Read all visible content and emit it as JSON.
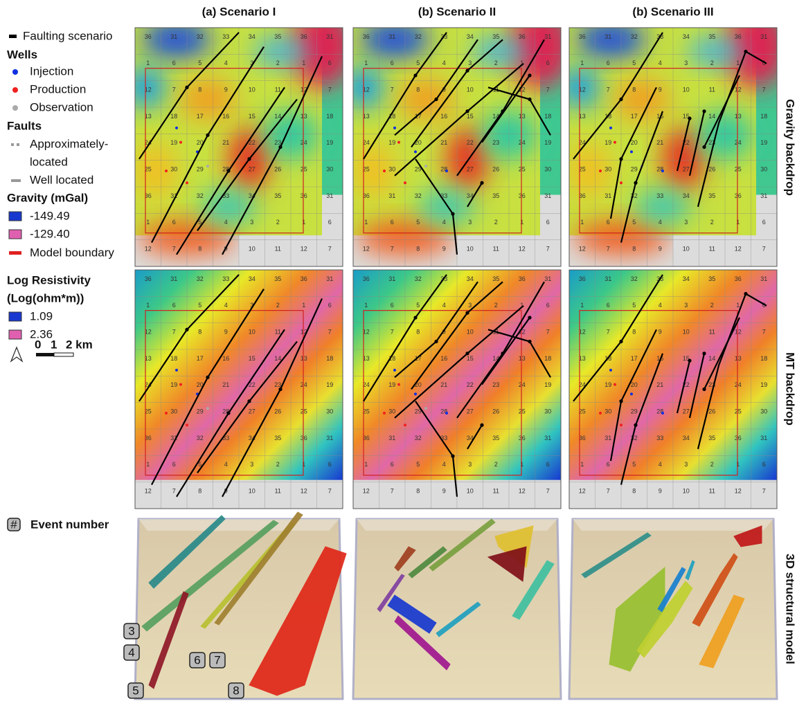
{
  "column_titles": [
    "(a) Scenario I",
    "(b) Scenario II",
    "(b) Scenario III"
  ],
  "row_labels": [
    "Gravity backdrop",
    "MT backdrop",
    "3D structural model"
  ],
  "legend": {
    "faulting_scenario": "Faulting scenario",
    "wells": {
      "title": "Wells",
      "items": [
        "Injection",
        "Production",
        "Observation"
      ]
    },
    "faults": {
      "title": "Faults",
      "items": [
        [
          "Approximately-",
          "located"
        ],
        [
          "Well located"
        ]
      ]
    },
    "gravity": {
      "title": "Gravity (mGal)",
      "min": "-149.49",
      "max": "-129.40"
    },
    "model_boundary": "Model boundary",
    "resistivity": {
      "title": [
        "Log Resistivity",
        "(Log(ohm*m))"
      ],
      "min": "1.09",
      "max": "2.36"
    },
    "scale_bar": [
      "0",
      "1",
      "2 km"
    ],
    "event_number": {
      "symbol": "#",
      "label": "Event number"
    }
  },
  "events": [
    "3",
    "4",
    "5",
    "6",
    "7",
    "8"
  ],
  "map_sections": [
    [
      "36",
      "31",
      "32",
      "33",
      "34",
      "35",
      "36",
      "31"
    ],
    [
      "1",
      "6",
      "5",
      "4",
      "3",
      "2",
      "1",
      "6"
    ],
    [
      "12",
      "7",
      "8",
      "9",
      "10",
      "11",
      "12",
      "7"
    ],
    [
      "13",
      "18",
      "17",
      "16",
      "15",
      "14",
      "13",
      "18"
    ],
    [
      "24",
      "19",
      "20",
      "21",
      "22",
      "23",
      "24",
      "19"
    ],
    [
      "25",
      "30",
      "29",
      "28",
      "27",
      "26",
      "25",
      "30"
    ],
    [
      "36",
      "31",
      "32",
      "33",
      "34",
      "35",
      "36",
      "31"
    ],
    [
      "1",
      "6",
      "5",
      "4",
      "3",
      "2",
      "1",
      "6"
    ],
    [
      "12",
      "7",
      "8",
      "9",
      "10",
      "11",
      "12",
      "7"
    ]
  ]
}
